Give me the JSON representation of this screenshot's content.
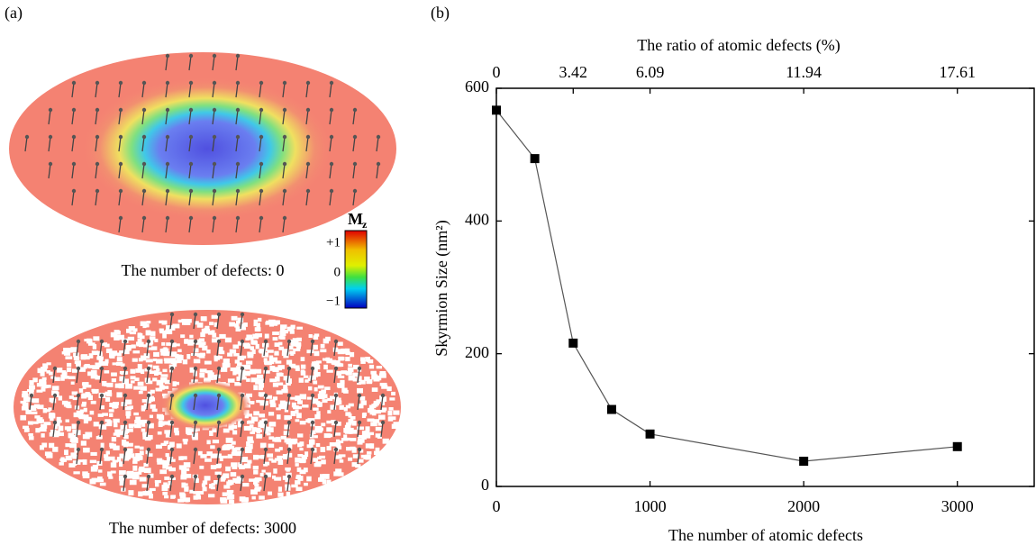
{
  "figure": {
    "panel_a": "(a)",
    "panel_b": "(b)",
    "caption_top": "The number of defects:  0",
    "caption_bottom": "The number of defects:  3000",
    "colorbar": {
      "symbol": "M",
      "subscript": "z",
      "labels": [
        "+1",
        "0",
        "−1"
      ]
    }
  },
  "chart_data": {
    "type": "line",
    "x_label": "The number of atomic defects",
    "y_label": "Skyrmion Size (nm²)",
    "x2_label": "The ratio of atomic defects (%)",
    "x": [
      0,
      250,
      500,
      750,
      1000,
      2000,
      3000
    ],
    "values": [
      567,
      494,
      216,
      116,
      79,
      38,
      60
    ],
    "color": "#555555",
    "marker_color": "#000000",
    "xlim": [
      0,
      3500
    ],
    "ylim": [
      0,
      600
    ],
    "xticks": [
      0,
      1000,
      2000,
      3000
    ],
    "yticks": [
      0,
      200,
      400,
      600
    ],
    "x2ticks": [
      0,
      {
        "value": 500,
        "label": "3.42"
      },
      {
        "value": 1000,
        "label": "6.09"
      },
      {
        "value": 2000,
        "label": "11.94"
      },
      {
        "value": 3000,
        "label": "17.61"
      }
    ]
  }
}
